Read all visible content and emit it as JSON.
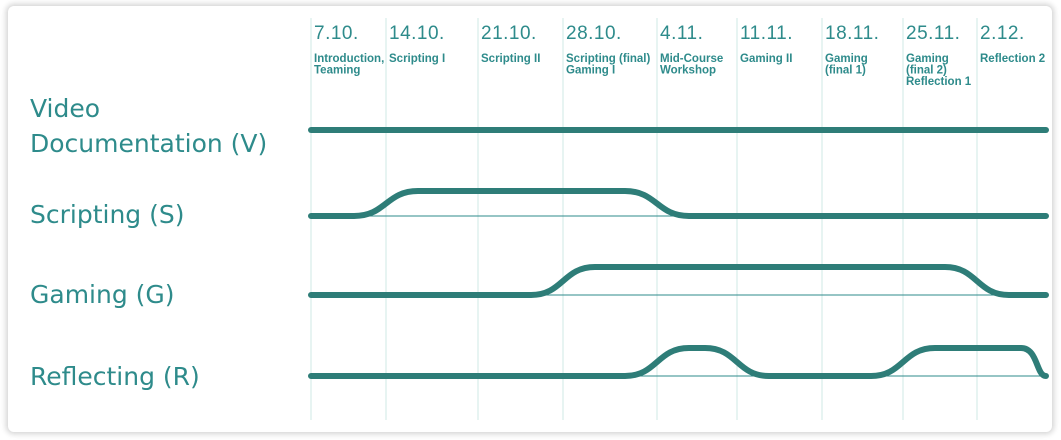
{
  "timeline": {
    "columns": [
      {
        "date": "7.10.",
        "session": [
          "Introduction,",
          "Teaming"
        ]
      },
      {
        "date": "14.10.",
        "session": [
          "Scripting I"
        ]
      },
      {
        "date": "21.10.",
        "session": [
          "Scripting II"
        ]
      },
      {
        "date": "28.10.",
        "session": [
          "Scripting (final)",
          "Gaming I"
        ]
      },
      {
        "date": "4.11.",
        "session": [
          "Mid-Course",
          "Workshop"
        ]
      },
      {
        "date": "11.11.",
        "session": [
          "Gaming II"
        ]
      },
      {
        "date": "18.11.",
        "session": [
          "Gaming",
          "(final 1)"
        ]
      },
      {
        "date": "25.11.",
        "session": [
          "Gaming",
          "(final 2)",
          "Reflection 1"
        ]
      },
      {
        "date": "2.12.",
        "session": [
          "Reflection 2"
        ]
      }
    ]
  },
  "tracks": [
    {
      "id": "video",
      "label": [
        "Video",
        "Documentation (V)"
      ],
      "level": [
        1,
        1,
        1,
        1,
        1,
        1,
        1,
        1,
        1
      ]
    },
    {
      "id": "scripting",
      "label": [
        "Scripting (S)"
      ],
      "level": [
        0,
        1,
        1,
        1,
        0,
        0,
        0,
        0,
        0
      ]
    },
    {
      "id": "gaming",
      "label": [
        "Gaming (G)"
      ],
      "level": [
        0,
        0,
        0,
        1,
        1,
        1,
        1,
        1,
        0
      ]
    },
    {
      "id": "reflecting",
      "label": [
        "Reflecting (R)"
      ],
      "level": [
        0,
        0,
        0,
        0,
        1,
        0,
        0,
        1,
        1
      ]
    }
  ],
  "colors": {
    "accent": "#2e8b8b",
    "track": "#2e7d78",
    "grid": "#cfe8e6"
  }
}
